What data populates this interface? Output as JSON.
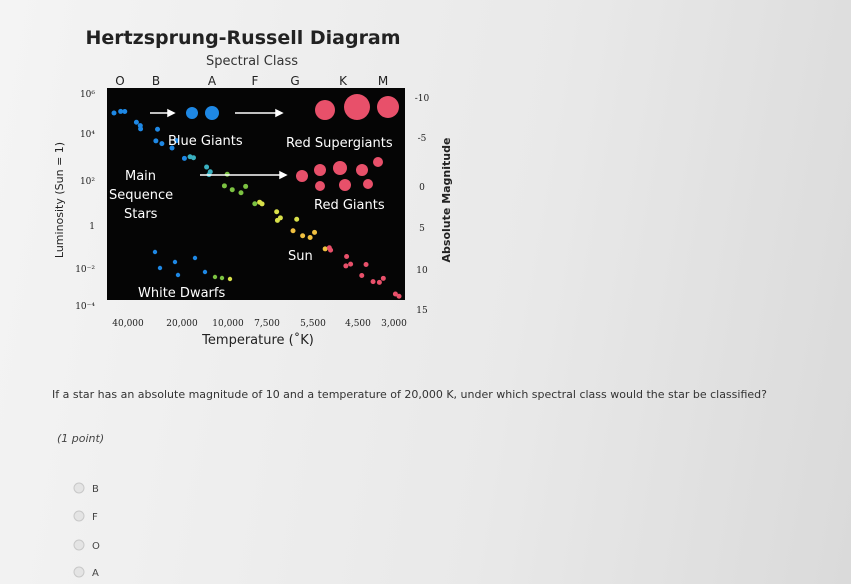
{
  "diagram": {
    "title": "Hertzsprung-Russell Diagram",
    "top_axis_label": "Spectral Class",
    "spectral_classes": [
      "O",
      "B",
      "A",
      "F",
      "G",
      "K",
      "M"
    ],
    "left_axis_label": "Luminosity (Sun = 1)",
    "left_ticks": [
      "10⁶",
      "10⁴",
      "10²",
      "1",
      "10⁻²",
      "10⁻⁴"
    ],
    "right_axis_label": "Absolute Magnitude",
    "right_ticks": [
      "-10",
      "-5",
      "0",
      "5",
      "10",
      "15"
    ],
    "bottom_ticks": [
      "40,000",
      "20,000",
      "10,000",
      "7,500",
      "5,500",
      "4,500",
      "3,000"
    ],
    "bottom_axis_label": "Temperature (˚K)",
    "regions": {
      "blue_giants": "Blue Giants",
      "red_supergiants": "Red Supergiants",
      "main_sequence": [
        "Main",
        "Sequence",
        "Stars"
      ],
      "red_giants": "Red Giants",
      "sun": "Sun",
      "white_dwarfs": "White Dwarfs"
    }
  },
  "question": {
    "text": "If a star has an absolute magnitude of 10 and a temperature of 20,000 K, under which spectral class would the star be classified?",
    "points": "(1 point)",
    "options": [
      "B",
      "F",
      "O",
      "A"
    ]
  }
}
